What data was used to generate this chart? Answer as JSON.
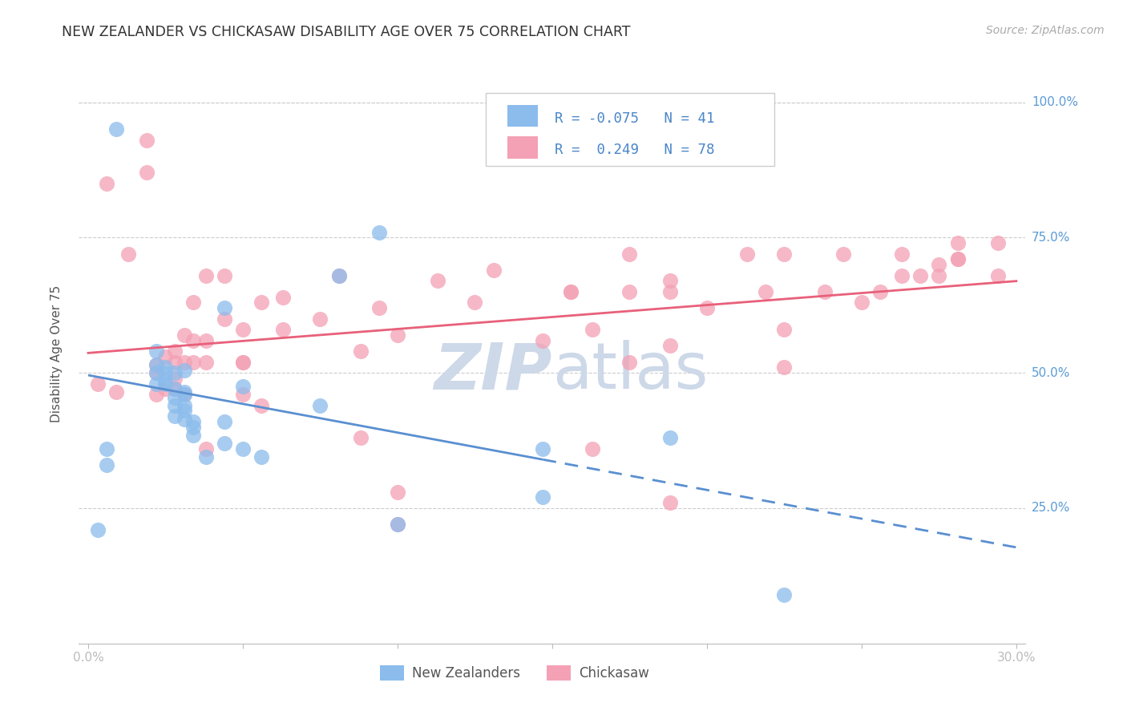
{
  "title": "NEW ZEALANDER VS CHICKASAW DISABILITY AGE OVER 75 CORRELATION CHART",
  "source": "Source: ZipAtlas.com",
  "ylabel": "Disability Age Over 75",
  "xlim": [
    0.0,
    0.3
  ],
  "ylim": [
    0.0,
    1.05
  ],
  "legend_label1": "New Zealanders",
  "legend_label2": "Chickasaw",
  "R1": "-0.075",
  "N1": "41",
  "R2": "0.249",
  "N2": "78",
  "color_blue": "#8BBCEC",
  "color_pink": "#F4A0B5",
  "color_blue_line": "#5A8FD0",
  "color_pink_line": "#E8607A",
  "watermark_color": "#CDD8E8",
  "color_right_labels": "#5B9BD5",
  "nz_x": [
    0.003,
    0.006,
    0.006,
    0.009,
    0.022,
    0.022,
    0.022,
    0.022,
    0.025,
    0.025,
    0.025,
    0.025,
    0.028,
    0.028,
    0.028,
    0.028,
    0.028,
    0.031,
    0.031,
    0.031,
    0.031,
    0.031,
    0.031,
    0.034,
    0.034,
    0.034,
    0.038,
    0.044,
    0.044,
    0.044,
    0.05,
    0.05,
    0.056,
    0.075,
    0.081,
    0.094,
    0.1,
    0.147,
    0.147,
    0.188,
    0.225
  ],
  "nz_y": [
    0.21,
    0.33,
    0.36,
    0.95,
    0.48,
    0.5,
    0.515,
    0.54,
    0.48,
    0.485,
    0.5,
    0.51,
    0.42,
    0.44,
    0.455,
    0.47,
    0.5,
    0.415,
    0.43,
    0.44,
    0.46,
    0.465,
    0.505,
    0.385,
    0.4,
    0.41,
    0.345,
    0.37,
    0.41,
    0.62,
    0.36,
    0.475,
    0.345,
    0.44,
    0.68,
    0.76,
    0.22,
    0.27,
    0.36,
    0.38,
    0.09
  ],
  "ck_x": [
    0.003,
    0.009,
    0.019,
    0.019,
    0.022,
    0.022,
    0.022,
    0.025,
    0.025,
    0.028,
    0.028,
    0.028,
    0.028,
    0.031,
    0.031,
    0.031,
    0.034,
    0.034,
    0.034,
    0.038,
    0.038,
    0.038,
    0.044,
    0.044,
    0.05,
    0.05,
    0.05,
    0.056,
    0.056,
    0.063,
    0.063,
    0.075,
    0.081,
    0.088,
    0.088,
    0.094,
    0.1,
    0.113,
    0.125,
    0.131,
    0.147,
    0.156,
    0.163,
    0.175,
    0.188,
    0.188,
    0.2,
    0.213,
    0.219,
    0.225,
    0.238,
    0.25,
    0.263,
    0.275,
    0.281,
    0.006,
    0.013,
    0.038,
    0.05,
    0.163,
    0.175,
    0.188,
    0.225,
    0.263,
    0.275,
    0.281,
    0.294,
    0.156,
    0.1,
    0.188,
    0.225,
    0.244,
    0.256,
    0.269,
    0.281,
    0.294,
    0.1,
    0.175
  ],
  "ck_y": [
    0.48,
    0.465,
    0.87,
    0.93,
    0.46,
    0.5,
    0.515,
    0.47,
    0.53,
    0.47,
    0.49,
    0.52,
    0.54,
    0.46,
    0.52,
    0.57,
    0.52,
    0.56,
    0.63,
    0.52,
    0.56,
    0.68,
    0.6,
    0.68,
    0.46,
    0.52,
    0.58,
    0.44,
    0.63,
    0.58,
    0.64,
    0.6,
    0.68,
    0.38,
    0.54,
    0.62,
    0.57,
    0.67,
    0.63,
    0.69,
    0.56,
    0.65,
    0.58,
    0.72,
    0.55,
    0.65,
    0.62,
    0.72,
    0.65,
    0.72,
    0.65,
    0.63,
    0.68,
    0.7,
    0.74,
    0.85,
    0.72,
    0.36,
    0.52,
    0.36,
    0.65,
    0.67,
    0.58,
    0.72,
    0.68,
    0.71,
    0.68,
    0.65,
    0.22,
    0.26,
    0.51,
    0.72,
    0.65,
    0.68,
    0.71,
    0.74,
    0.28,
    0.52
  ]
}
